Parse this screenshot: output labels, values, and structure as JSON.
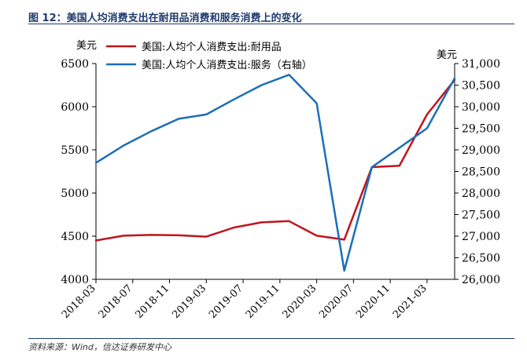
{
  "figure": {
    "title": "图 12：美国人均消费支出在耐用品消费和服务消费上的变化",
    "source": "资料来源：Wind，信达证券研发中心"
  },
  "chart_data": {
    "type": "line",
    "x": [
      "2018-03",
      "2018-05",
      "2018-07",
      "2018-09",
      "2018-11",
      "2019-01",
      "2019-03",
      "2019-05",
      "2019-07",
      "2019-09",
      "2019-11",
      "2020-01",
      "2020-03",
      "2020-05",
      "2020-07",
      "2020-09",
      "2020-11",
      "2021-01",
      "2021-03",
      "2021-05"
    ],
    "x_tick_labels": [
      "2018-03",
      "2018-07",
      "2018-11",
      "2019-03",
      "2019-07",
      "2019-11",
      "2020-03",
      "2020-07",
      "2020-11",
      "2021-03"
    ],
    "series": [
      {
        "name": "美国:人均个人消费支出:耐用品",
        "axis": "left",
        "color": "#c0141c",
        "x": [
          "2018-03",
          "2018-06",
          "2018-09",
          "2018-12",
          "2019-03",
          "2019-06",
          "2019-09",
          "2019-12",
          "2020-03",
          "2020-06",
          "2020-09",
          "2020-12",
          "2021-03",
          "2021-06"
        ],
        "values": [
          4450,
          4505,
          4515,
          4510,
          4495,
          4600,
          4660,
          4675,
          4505,
          4460,
          5300,
          5315,
          5910,
          6310
        ]
      },
      {
        "name": "美国:人均个人消费支出:服务（右轴）",
        "axis": "right",
        "color": "#1b6fb8",
        "x": [
          "2018-03",
          "2018-06",
          "2018-09",
          "2018-12",
          "2019-03",
          "2019-06",
          "2019-09",
          "2019-12",
          "2020-03",
          "2020-06",
          "2020-09",
          "2020-12",
          "2021-03",
          "2021-06"
        ],
        "values": [
          28700,
          29100,
          29430,
          29720,
          29820,
          30170,
          30500,
          30740,
          30080,
          26200,
          28600,
          29050,
          29500,
          30660
        ]
      }
    ],
    "y_left": {
      "unit_label": "美元",
      "range": [
        4000,
        6500
      ],
      "ticks": [
        "4000",
        "4500",
        "5000",
        "5500",
        "6000",
        "6500"
      ]
    },
    "y_right": {
      "unit_label": "美元",
      "range": [
        26000,
        31000
      ],
      "ticks": [
        "26,000",
        "26,500",
        "27,000",
        "27,500",
        "28,000",
        "28,500",
        "29,000",
        "29,500",
        "30,000",
        "30,500",
        "31,000"
      ]
    },
    "legend_position": "top-left",
    "grid": false
  }
}
